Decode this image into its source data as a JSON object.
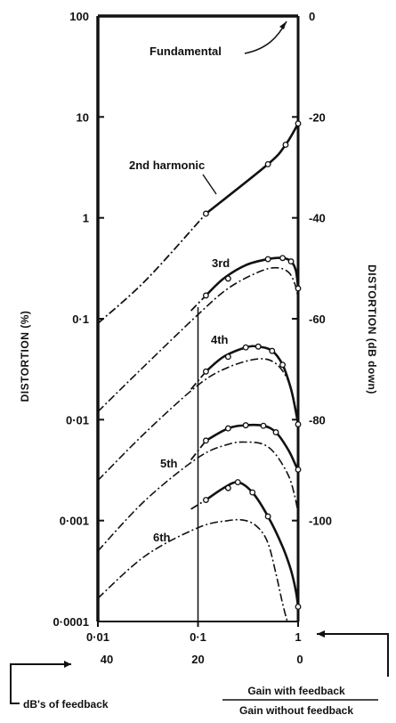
{
  "chart_data": {
    "type": "line",
    "x_scale": "log",
    "y_scale": "log",
    "xlim": [
      0.01,
      1
    ],
    "ylim": [
      0.0001,
      100
    ],
    "x_ticks": [
      "0·01",
      "0·1",
      "1"
    ],
    "x_ticks_db": [
      "40",
      "20",
      "0"
    ],
    "y_ticks": [
      "100",
      "10",
      "1",
      "0·1",
      "0·01",
      "0·001",
      "0·0001"
    ],
    "y2_ticks": [
      "0",
      "-20",
      "-40",
      "-60",
      "-80",
      "-100"
    ],
    "ylabel": "DISTORTION (%)",
    "y2label": "DISTORTION (dB down)",
    "xlabel_left": "dB's of feedback",
    "xlabel_right_numerator": "Gain with feedback",
    "xlabel_right_denominator": "Gain without feedback",
    "fundamental_label": "Fundamental",
    "grid": false,
    "series": [
      {
        "name": "2nd harmonic",
        "with_feedback": {
          "x": [
            0.01,
            0.03,
            0.12,
            0.5,
            0.75,
            1.0
          ],
          "y": [
            0.09,
            0.24,
            1.1,
            3.4,
            5.3,
            8.6
          ]
        },
        "measured": {
          "x": [
            0.12,
            0.5,
            0.75,
            1.0
          ],
          "y": [
            1.1,
            3.4,
            5.3,
            8.6
          ]
        }
      },
      {
        "name": "3rd",
        "with_feedback": {
          "x": [
            0.085,
            0.12,
            0.18,
            0.3,
            0.5,
            0.7,
            0.85,
            0.95,
            1.0
          ],
          "y": [
            0.12,
            0.17,
            0.25,
            0.34,
            0.39,
            0.4,
            0.37,
            0.3,
            0.2
          ]
        },
        "no_feedback_estimate": {
          "x": [
            0.01,
            0.03,
            0.1,
            0.2,
            0.4,
            0.6,
            0.8,
            0.93,
            1.0
          ],
          "y": [
            0.012,
            0.035,
            0.11,
            0.2,
            0.29,
            0.32,
            0.29,
            0.22,
            0.16
          ]
        },
        "measured": {
          "x": [
            0.12,
            0.2,
            0.5,
            0.7,
            0.85,
            1.0
          ],
          "y": [
            0.17,
            0.25,
            0.39,
            0.4,
            0.37,
            0.2
          ]
        }
      },
      {
        "name": "4th",
        "with_feedback": {
          "x": [
            0.085,
            0.12,
            0.18,
            0.3,
            0.4,
            0.55,
            0.7,
            0.85,
            0.95,
            1.0
          ],
          "y": [
            0.02,
            0.03,
            0.042,
            0.052,
            0.053,
            0.048,
            0.035,
            0.02,
            0.012,
            0.009
          ]
        },
        "no_feedback_estimate": {
          "x": [
            0.01,
            0.03,
            0.1,
            0.2,
            0.4,
            0.6,
            0.8,
            0.92,
            1.0
          ],
          "y": [
            0.0025,
            0.0075,
            0.022,
            0.033,
            0.04,
            0.036,
            0.024,
            0.014,
            0.008
          ]
        },
        "measured": {
          "x": [
            0.12,
            0.2,
            0.3,
            0.4,
            0.55,
            0.7,
            1.0
          ],
          "y": [
            0.03,
            0.042,
            0.052,
            0.053,
            0.048,
            0.035,
            0.009
          ]
        }
      },
      {
        "name": "5th",
        "with_feedback": {
          "x": [
            0.085,
            0.12,
            0.2,
            0.3,
            0.45,
            0.6,
            0.8,
            0.95,
            1.0
          ],
          "y": [
            0.004,
            0.0062,
            0.0082,
            0.0088,
            0.0087,
            0.0075,
            0.005,
            0.0035,
            0.0032
          ]
        },
        "no_feedback_estimate": {
          "x": [
            0.01,
            0.03,
            0.1,
            0.2,
            0.3,
            0.45,
            0.6,
            0.8,
            0.92,
            1.0
          ],
          "y": [
            0.0005,
            0.0016,
            0.0042,
            0.0057,
            0.006,
            0.0057,
            0.0045,
            0.0028,
            0.0018,
            0.0012
          ]
        },
        "measured": {
          "x": [
            0.12,
            0.2,
            0.3,
            0.45,
            0.6,
            1.0
          ],
          "y": [
            0.0062,
            0.0082,
            0.0088,
            0.0087,
            0.0075,
            0.0032
          ]
        }
      },
      {
        "name": "6th",
        "with_feedback": {
          "x": [
            0.085,
            0.12,
            0.18,
            0.25,
            0.35,
            0.5,
            0.7,
            0.85,
            0.95,
            1.0
          ],
          "y": [
            0.0013,
            0.0016,
            0.0021,
            0.0024,
            0.0019,
            0.0011,
            0.00055,
            0.00032,
            0.0002,
            0.00014
          ]
        },
        "no_feedback_estimate": {
          "x": [
            0.01,
            0.03,
            0.1,
            0.2,
            0.3,
            0.4,
            0.5,
            0.6,
            0.7,
            0.78
          ],
          "y": [
            0.00017,
            0.00045,
            0.00085,
            0.001,
            0.001,
            0.00085,
            0.0006,
            0.0003,
            0.00015,
            0.0001
          ]
        },
        "measured": {
          "x": [
            0.12,
            0.2,
            0.25,
            0.35,
            0.5,
            1.0
          ],
          "y": [
            0.0016,
            0.0021,
            0.0024,
            0.0019,
            0.0011,
            0.00014
          ]
        }
      }
    ]
  }
}
